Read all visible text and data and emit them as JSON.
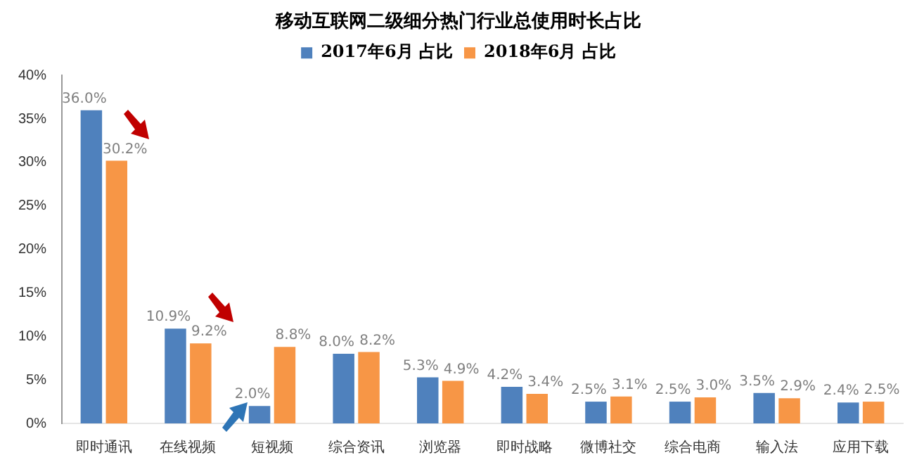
{
  "chart_data": {
    "type": "bar",
    "title": "移动互联网二级细分热门行业总使用时长占比",
    "categories": [
      "即时通讯",
      "在线视频",
      "短视频",
      "综合资讯",
      "浏览器",
      "即时战略",
      "微博社交",
      "综合电商",
      "输入法",
      "应用下载"
    ],
    "series": [
      {
        "name": "2017年6月 占比",
        "color": "#4f81bd",
        "values": [
          36.0,
          10.9,
          2.0,
          8.0,
          5.3,
          4.2,
          2.5,
          2.5,
          3.5,
          2.4
        ],
        "value_labels": [
          "36.0%",
          "10.9%",
          "2.0%",
          "8.0%",
          "5.3%",
          "4.2%",
          "2.5%",
          "2.5%",
          "3.5%",
          "2.4%"
        ]
      },
      {
        "name": "2018年6月 占比",
        "color": "#f79646",
        "values": [
          30.2,
          9.2,
          8.8,
          8.2,
          4.9,
          3.4,
          3.1,
          3.0,
          2.9,
          2.5
        ],
        "value_labels": [
          "30.2%",
          "9.2%",
          "8.8%",
          "8.2%",
          "4.9%",
          "3.4%",
          "3.1%",
          "3.0%",
          "2.9%",
          "2.5%"
        ]
      }
    ],
    "ylim": [
      0,
      40
    ],
    "yticks": [
      {
        "value": 0,
        "label": "0%"
      },
      {
        "value": 5,
        "label": "5%"
      },
      {
        "value": 10,
        "label": "10%"
      },
      {
        "value": 15,
        "label": "15%"
      },
      {
        "value": 20,
        "label": "20%"
      },
      {
        "value": 25,
        "label": "25%"
      },
      {
        "value": 30,
        "label": "30%"
      },
      {
        "value": 35,
        "label": "35%"
      },
      {
        "value": 40,
        "label": "40%"
      }
    ],
    "grid": false,
    "legend": "top"
  }
}
